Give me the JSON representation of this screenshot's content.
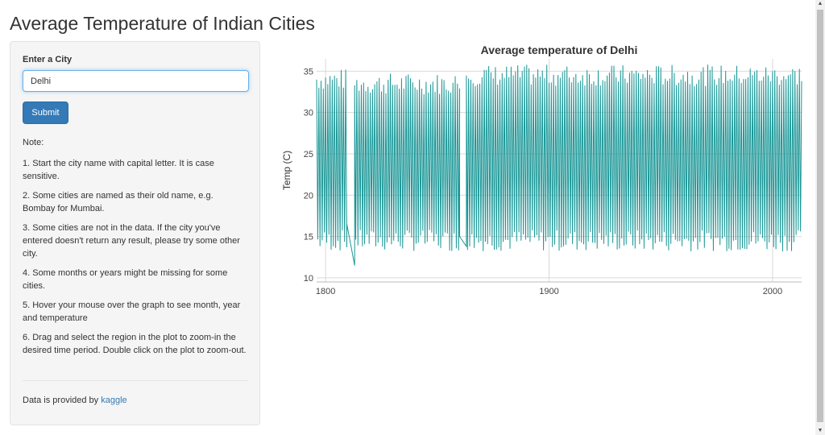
{
  "page": {
    "title": "Average Temperature of Indian Cities"
  },
  "form": {
    "label": "Enter a City",
    "value": "Delhi",
    "submit_label": "Submit"
  },
  "notes": {
    "title": "Note:",
    "items": [
      "1. Start the city name with capital letter. It is case sensitive.",
      "2. Some cities are named as their old name, e.g. Bombay for Mumbai.",
      "3. Some cities are not in the data. If the city you've entered doesn't return any result, please try some other city.",
      "4. Some months or years might be missing for some cities.",
      "5. Hover your mouse over the graph to see month, year and temperature",
      "6. Drag and select the region in the plot to zoom-in the desired time period. Double click on the plot to zoom-out."
    ]
  },
  "credit": {
    "prefix": "Data is provided by ",
    "link_text": "kaggle"
  },
  "colors": {
    "line": "#1a9696",
    "primary": "#337ab7",
    "link": "#337ab7"
  },
  "chart_data": {
    "type": "line",
    "title": "Average temperature of Delhi",
    "xlabel": "",
    "ylabel": "Temp (C)",
    "xlim": [
      1796,
      2013
    ],
    "ylim": [
      9.5,
      36.5
    ],
    "xticks": [
      1800,
      1900,
      2000
    ],
    "yticks": [
      10,
      15,
      20,
      25,
      30,
      35
    ],
    "grid": true,
    "series": [
      {
        "segments": [
          {
            "x": [
              1796,
              1809.5
            ],
            "y_min_avg": 14.5,
            "y_max_avg": 34.0
          },
          {
            "x": [
              1809.5,
              1813
            ],
            "y": [
              16.5,
              11.5
            ]
          },
          {
            "x": [
              1813,
              1860
            ],
            "y_min_avg": 14.5,
            "y_max_avg": 33.5
          },
          {
            "x": [
              1860,
              1863
            ],
            "y": [
              15.0,
              13.8
            ]
          },
          {
            "x": [
              1863,
              2013
            ],
            "y_min_avg": 14.5,
            "y_max_avg": 34.5
          }
        ],
        "overall_min": 11.5,
        "overall_max": 36.3
      }
    ]
  }
}
